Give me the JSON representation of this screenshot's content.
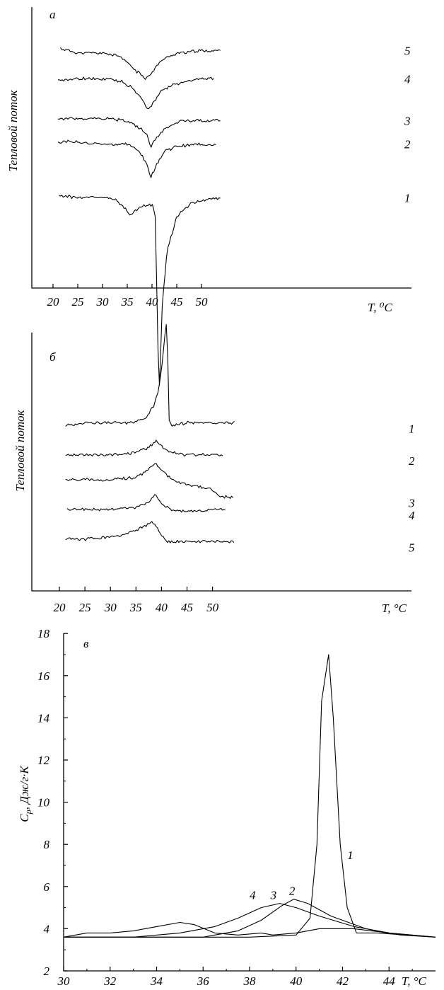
{
  "chart_data": [
    {
      "type": "line",
      "panel_label": "а",
      "ylabel": "Тепловой поток",
      "xlabel": "T, ⁰C",
      "xlim": [
        17,
        57
      ],
      "x_ticks": [
        20,
        25,
        30,
        35,
        40,
        45,
        50
      ],
      "y_ticks_shown": false,
      "grid": false,
      "series": [
        {
          "name": "5",
          "x": [
            21.5,
            25,
            30,
            33,
            35,
            37,
            38.8,
            40,
            42,
            45,
            50,
            53.8
          ],
          "y": [
            0.92,
            0.9,
            0.9,
            0.89,
            0.86,
            0.82,
            0.79,
            0.82,
            0.87,
            0.9,
            0.91,
            0.91
          ]
        },
        {
          "name": "4",
          "x": [
            21.0,
            25,
            30,
            34,
            36,
            38,
            39.2,
            40,
            42,
            45,
            50,
            52.5
          ],
          "y": [
            0.78,
            0.79,
            0.79,
            0.78,
            0.75,
            0.7,
            0.66,
            0.68,
            0.74,
            0.77,
            0.79,
            0.79
          ]
        },
        {
          "name": "3",
          "x": [
            21.0,
            25,
            30,
            35,
            37.5,
            39,
            39.8,
            41,
            43,
            46,
            50,
            53.8
          ],
          "y": [
            0.62,
            0.62,
            0.62,
            0.61,
            0.58,
            0.55,
            0.5,
            0.54,
            0.58,
            0.61,
            0.61,
            0.61
          ]
        },
        {
          "name": "2",
          "x": [
            21.0,
            25,
            30,
            35,
            37.5,
            39,
            39.8,
            40.8,
            42.5,
            45,
            50,
            52.9
          ],
          "y": [
            0.52,
            0.52,
            0.51,
            0.51,
            0.48,
            0.42,
            0.37,
            0.42,
            0.48,
            0.5,
            0.51,
            0.51
          ]
        },
        {
          "name": "1",
          "x": [
            21.2,
            25,
            30,
            33,
            35.5,
            37,
            38.5,
            40,
            40.7,
            41.0,
            41.4,
            41.6,
            42.0,
            43,
            45,
            48,
            50,
            53.8
          ],
          "y": [
            0.29,
            0.28,
            0.28,
            0.27,
            0.21,
            0.23,
            0.25,
            0.25,
            0.2,
            -0.15,
            -0.55,
            -0.5,
            -0.2,
            0.05,
            0.2,
            0.26,
            0.27,
            0.28
          ]
        }
      ]
    },
    {
      "type": "line",
      "panel_label": "б",
      "ylabel": "Тепловой поток",
      "xlabel": "T, °C",
      "xlim": [
        17,
        57
      ],
      "x_ticks": [
        20,
        25,
        30,
        35,
        40,
        45,
        50
      ],
      "y_ticks_shown": false,
      "grid": false,
      "series": [
        {
          "name": "1",
          "x": [
            21.2,
            25,
            30,
            34,
            37,
            38.5,
            39.5,
            40.3,
            40.9,
            41.1,
            41.5,
            42,
            45,
            50,
            54.3
          ],
          "y": [
            0.6,
            0.61,
            0.61,
            0.61,
            0.63,
            0.68,
            0.75,
            0.88,
            1.02,
            0.98,
            0.62,
            0.6,
            0.61,
            0.61,
            0.61
          ]
        },
        {
          "name": "2",
          "x": [
            21.2,
            25,
            30,
            35,
            37.5,
            38.9,
            40.2,
            42,
            45,
            50,
            52.0
          ],
          "y": [
            0.48,
            0.48,
            0.48,
            0.49,
            0.51,
            0.54,
            0.51,
            0.49,
            0.48,
            0.48,
            0.48
          ]
        },
        {
          "name": "3",
          "x": [
            21.2,
            25,
            30,
            35,
            37.5,
            38.7,
            40,
            42,
            45,
            50,
            51.5,
            54.0
          ],
          "y": [
            0.38,
            0.38,
            0.38,
            0.39,
            0.42,
            0.45,
            0.42,
            0.38,
            0.36,
            0.34,
            0.31,
            0.31
          ]
        },
        {
          "name": "4",
          "x": [
            21.5,
            25,
            30,
            35,
            37.5,
            38.7,
            40,
            42,
            45,
            50,
            52.5
          ],
          "y": [
            0.26,
            0.26,
            0.26,
            0.27,
            0.29,
            0.32,
            0.28,
            0.26,
            0.25,
            0.26,
            0.26
          ]
        },
        {
          "name": "5",
          "x": [
            21.2,
            25,
            30,
            33,
            35.5,
            37.3,
            38.2,
            39.2,
            41,
            43,
            45,
            50,
            54.2
          ],
          "y": [
            0.14,
            0.14,
            0.15,
            0.16,
            0.18,
            0.2,
            0.21,
            0.18,
            0.13,
            0.13,
            0.13,
            0.13,
            0.13
          ]
        }
      ]
    },
    {
      "type": "line",
      "panel_label": "в",
      "ylabel": "Cp, Дж/г·К",
      "ylabel_main": "C",
      "ylabel_sub": "p",
      "ylabel_rest": ", Дж/г·К",
      "xlabel": "T, °C",
      "xlim": [
        30,
        46
      ],
      "ylim": [
        2,
        18
      ],
      "x_ticks": [
        30,
        32,
        34,
        36,
        38,
        40,
        42,
        44
      ],
      "y_ticks": [
        2,
        4,
        6,
        8,
        10,
        12,
        14,
        16,
        18
      ],
      "grid": false,
      "series": [
        {
          "name": "1",
          "x": [
            30,
            33,
            36,
            38,
            40,
            40.6,
            40.9,
            41.1,
            41.4,
            41.6,
            41.9,
            42.2,
            42.6,
            43.5,
            46
          ],
          "y": [
            3.6,
            3.6,
            3.6,
            3.6,
            3.7,
            4.5,
            8.0,
            14.8,
            17.0,
            14.0,
            8.0,
            5.0,
            3.8,
            3.8,
            3.6
          ]
        },
        {
          "name": "2",
          "x": [
            30,
            34,
            36,
            37.5,
            38.5,
            39.4,
            39.9,
            40.5,
            41.5,
            43,
            44.5,
            46
          ],
          "y": [
            3.6,
            3.6,
            3.6,
            3.9,
            4.4,
            5.1,
            5.4,
            5.2,
            4.6,
            4.0,
            3.7,
            3.6
          ]
        },
        {
          "name": "3",
          "x": [
            30,
            33,
            35,
            36.5,
            37.5,
            38.5,
            39.3,
            40,
            41,
            42.5,
            44,
            46
          ],
          "y": [
            3.6,
            3.6,
            3.8,
            4.1,
            4.5,
            5.0,
            5.2,
            5.0,
            4.6,
            4.1,
            3.8,
            3.6
          ]
        },
        {
          "name": "4",
          "x": [
            30,
            31,
            32,
            33,
            34,
            35,
            35.6,
            36.5,
            37.5,
            38.5,
            39,
            40,
            41,
            42.5,
            44,
            46
          ],
          "y": [
            3.6,
            3.8,
            3.8,
            3.9,
            4.1,
            4.3,
            4.2,
            3.8,
            3.7,
            3.8,
            3.7,
            3.8,
            4.0,
            4.0,
            3.8,
            3.6
          ]
        }
      ],
      "series_label_positions": {
        "1": [
          42.2,
          7.3
        ],
        "2": [
          39.7,
          5.6
        ],
        "3": [
          38.9,
          5.4
        ],
        "4": [
          38.0,
          5.4
        ]
      }
    }
  ]
}
